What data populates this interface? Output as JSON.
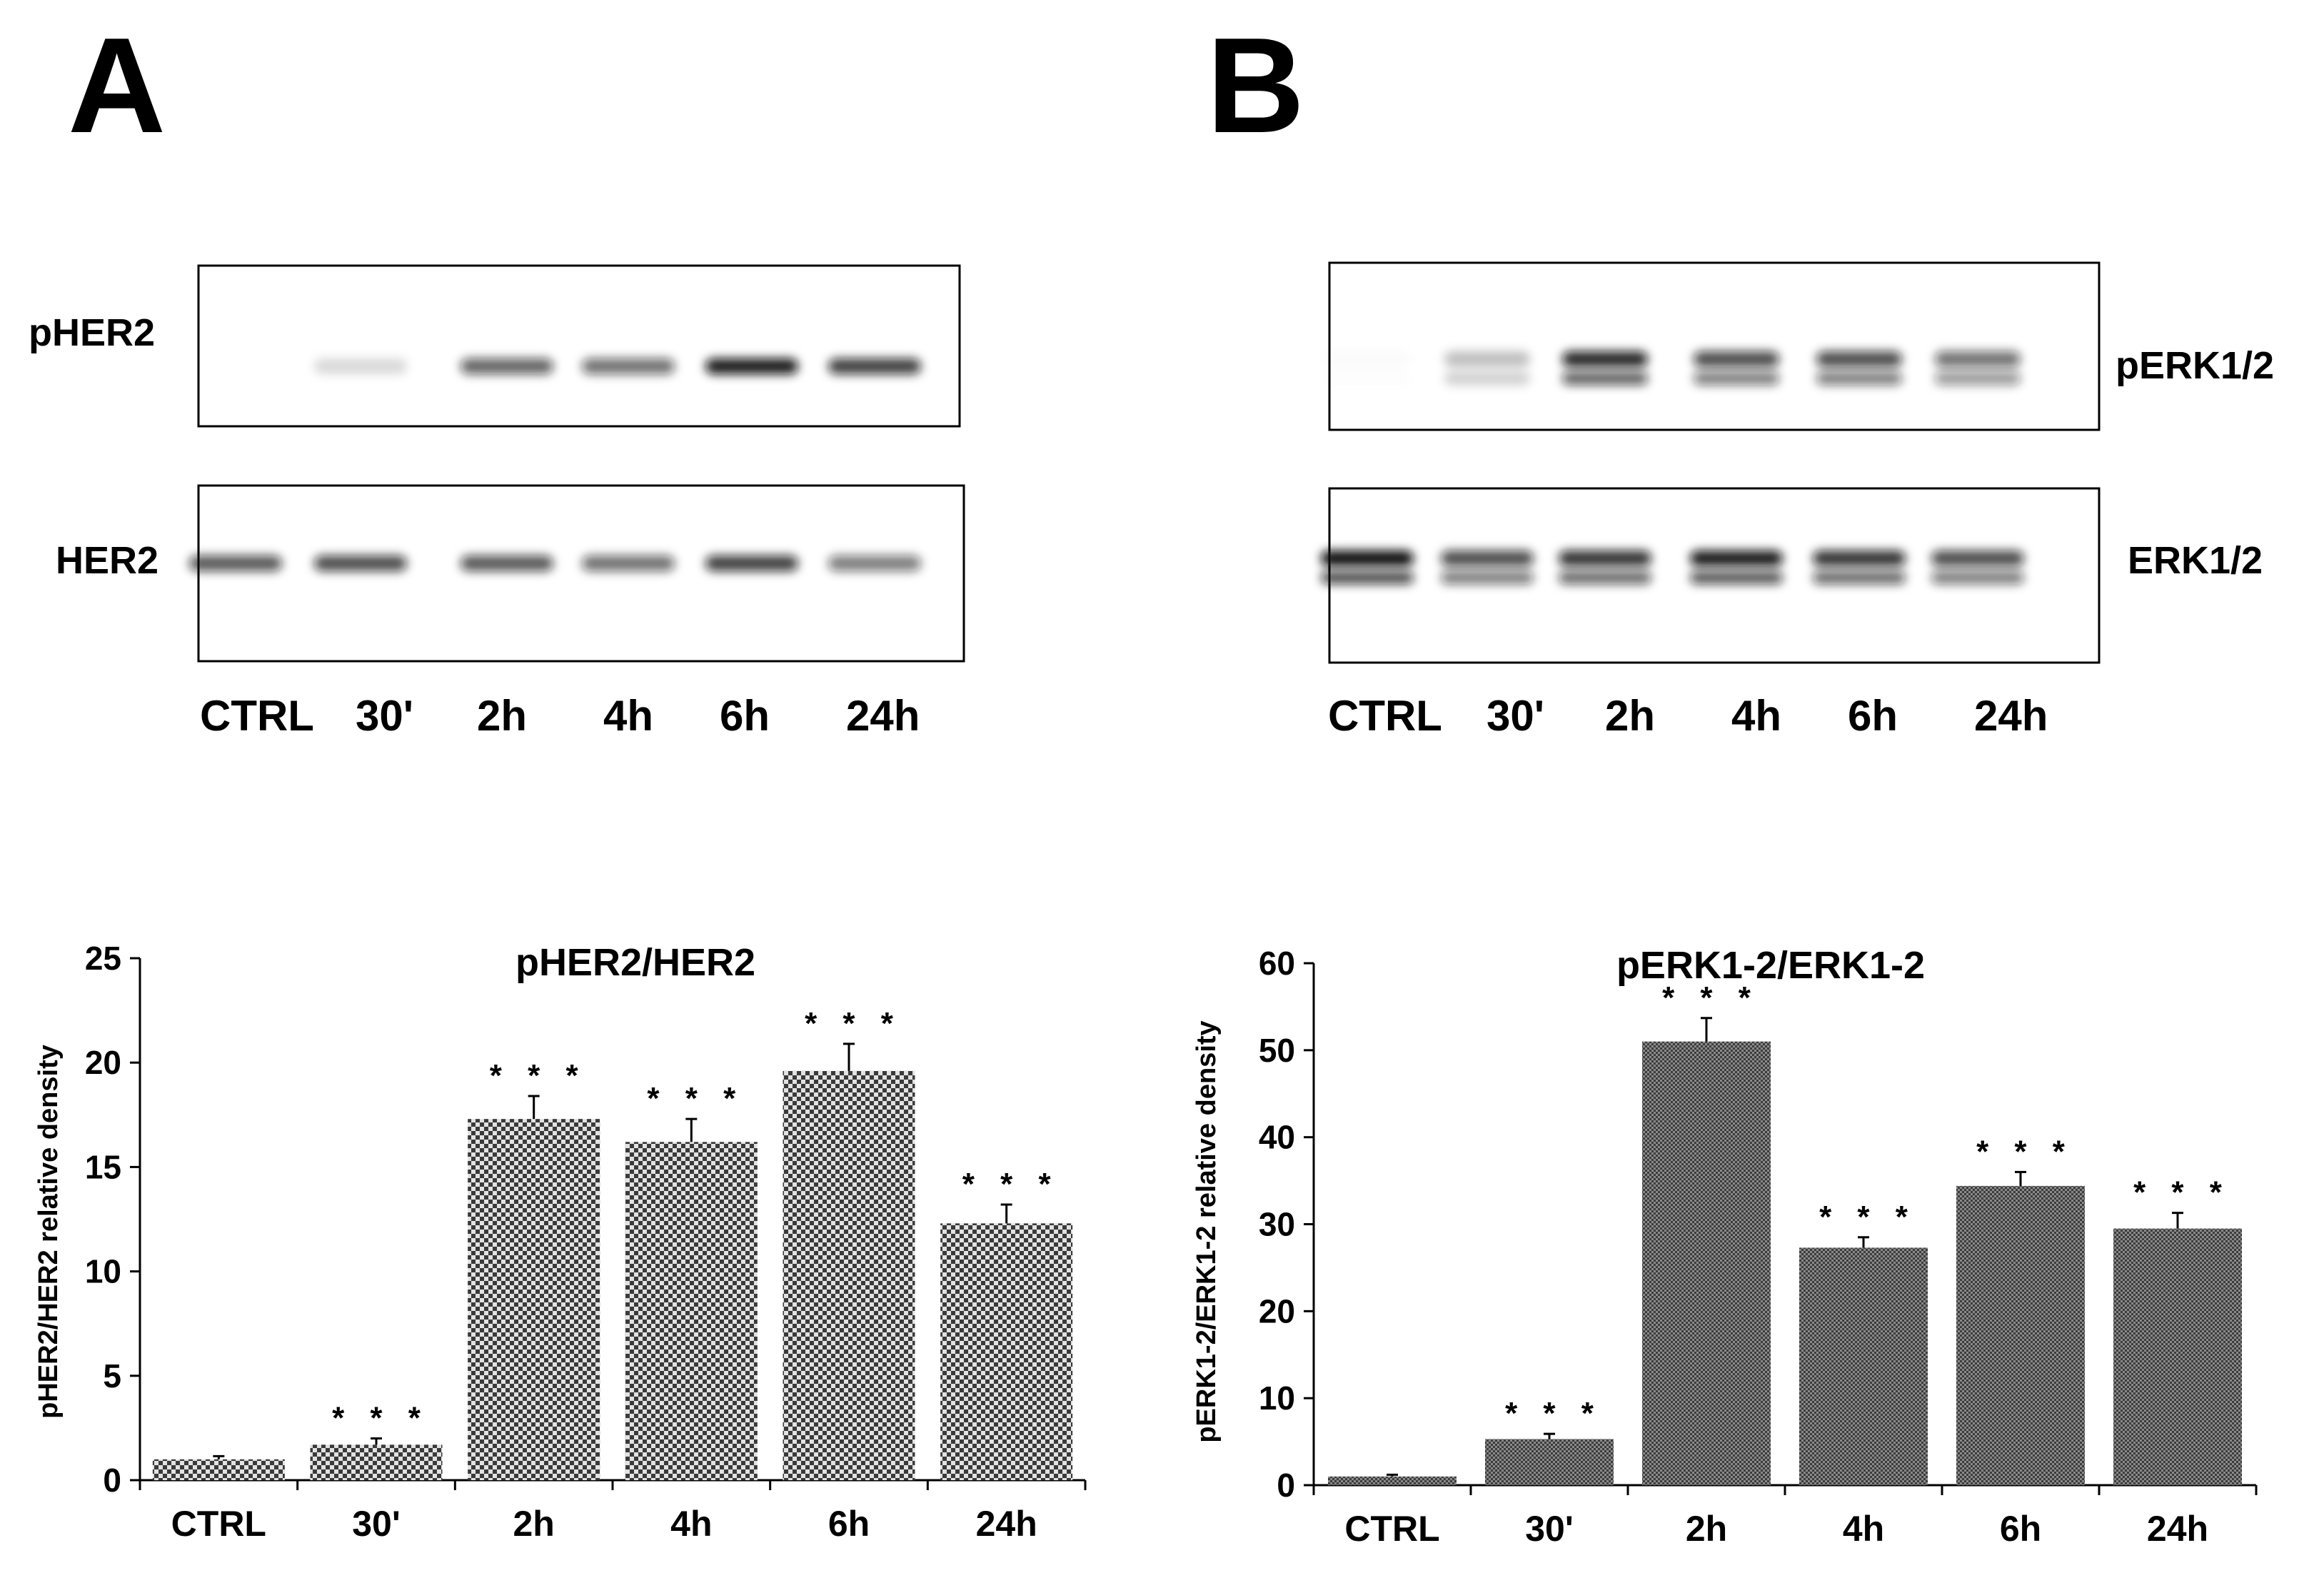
{
  "panels": [
    {
      "letter": "A",
      "blots": [
        {
          "label": "pHER2",
          "band_intensity": [
            0.0,
            0.15,
            0.65,
            0.6,
            0.95,
            0.8
          ],
          "double_band": false
        },
        {
          "label": "HER2",
          "band_intensity": [
            0.7,
            0.75,
            0.7,
            0.6,
            0.8,
            0.55
          ],
          "double_band": false
        }
      ],
      "lanes": [
        "CTRL",
        "30'",
        "2h",
        "4h",
        "6h",
        "24h"
      ]
    },
    {
      "letter": "B",
      "blots": [
        {
          "label": "pERK1/2",
          "band_intensity": [
            0.02,
            0.25,
            0.9,
            0.75,
            0.75,
            0.6
          ],
          "double_band": true
        },
        {
          "label": "ERK1/2",
          "band_intensity": [
            1.0,
            0.75,
            0.85,
            0.95,
            0.85,
            0.75
          ],
          "double_band": true
        }
      ],
      "lanes": [
        "CTRL",
        "30'",
        "2h",
        "4h",
        "6h",
        "24h"
      ]
    }
  ],
  "chart_data": [
    {
      "type": "bar",
      "title": "pHER2/HER2",
      "xlabel": "",
      "ylabel": "pHER2/HER2 relative density",
      "categories": [
        "CTRL",
        "30'",
        "2h",
        "4h",
        "6h",
        "24h"
      ],
      "values": [
        1.0,
        1.7,
        17.3,
        16.2,
        19.6,
        12.3
      ],
      "errors": [
        0.15,
        0.3,
        1.1,
        1.1,
        1.3,
        0.9
      ],
      "significance": [
        "",
        "* * *",
        "* * *",
        "* * *",
        "* * *",
        "* * *"
      ],
      "ylim": [
        0,
        25
      ],
      "yticks": [
        0,
        5,
        10,
        15,
        20,
        25
      ],
      "grid": false,
      "fill": "checkered"
    },
    {
      "type": "bar",
      "title": "pERK1-2/ERK1-2",
      "xlabel": "",
      "ylabel": "pERK1-2/ERK1-2 relative density",
      "categories": [
        "CTRL",
        "30'",
        "2h",
        "4h",
        "6h",
        "24h"
      ],
      "values": [
        1.0,
        5.3,
        51.0,
        27.3,
        34.4,
        29.5
      ],
      "errors": [
        0.2,
        0.6,
        2.7,
        1.2,
        1.6,
        1.8
      ],
      "significance": [
        "",
        "* * *",
        "* * *",
        "* * *",
        "* * *",
        "* * *"
      ],
      "ylim": [
        0,
        60
      ],
      "yticks": [
        0,
        10,
        20,
        30,
        40,
        50,
        60
      ],
      "grid": false,
      "fill": "fine-dotted"
    }
  ],
  "colors": {
    "bar_dark": "#4a4a4a",
    "bar_light": "#d8d8d8",
    "blot_band": "#111111",
    "ink": "#000000"
  }
}
